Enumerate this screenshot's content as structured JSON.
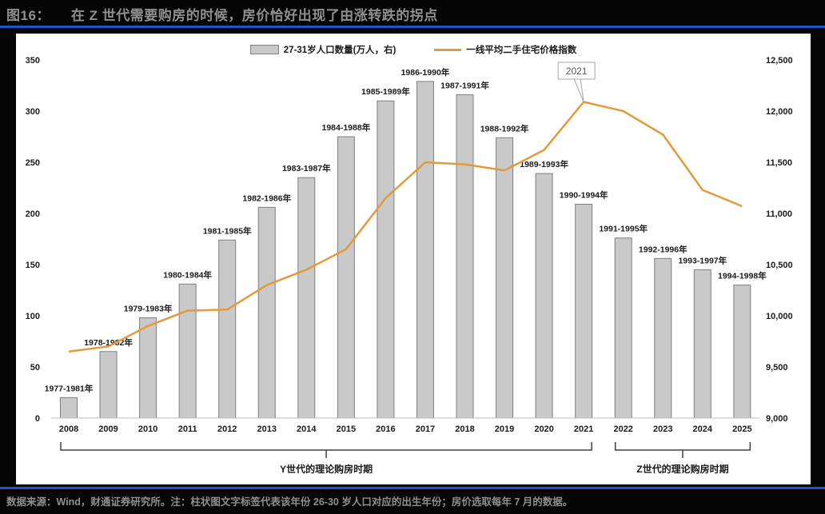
{
  "header": {
    "tag": "图16：",
    "title": "在 Z 世代需要购房的时候，房价恰好出现了由涨转跌的拐点"
  },
  "legend": {
    "bar_label": "27-31岁人口数量(万人，右)",
    "line_label": "一线平均二手住宅价格指数"
  },
  "annotation": {
    "label": "2021",
    "year": "2021"
  },
  "brackets": [
    {
      "label": "Y世代的理论购房时期",
      "from": "2008",
      "to": "2021"
    },
    {
      "label": "Z世代的理论购房时期",
      "from": "2022",
      "to": "2025"
    }
  ],
  "footer": {
    "text": "数据来源：Wind，财通证券研究所。注：柱状图文字标签代表该年份 26-30 岁人口对应的出生年份；房价选取每年 7 月的数据。"
  },
  "colors": {
    "page_bg": "#050505",
    "accent_blue": "#1c57c7",
    "bar_fill": "#c9c9c9",
    "bar_border": "#7f7f7f",
    "line_orange": "#e29a3a",
    "muted_text": "#8f8f8f",
    "axis_text": "#1a1a1a"
  },
  "chart_data": {
    "type": "bar",
    "subtype": "bar-line-combo",
    "categories": [
      "2008",
      "2009",
      "2010",
      "2011",
      "2012",
      "2013",
      "2014",
      "2015",
      "2016",
      "2017",
      "2018",
      "2019",
      "2020",
      "2021",
      "2022",
      "2023",
      "2024",
      "2025"
    ],
    "series": [
      {
        "name": "27-31岁人口数量(万人，右)",
        "type": "bar",
        "values": [
          20,
          65,
          98,
          131,
          174,
          206,
          235,
          275,
          310,
          329,
          316,
          274,
          239,
          209,
          176,
          156,
          145,
          130
        ],
        "point_labels": [
          "1977-1981年",
          "1978-1982年",
          "1979-1983年",
          "1980-1984年",
          "1981-1985年",
          "1982-1986年",
          "1983-1987年",
          "1984-1988年",
          "1985-1989年",
          "1986-1990年",
          "1987-1991年",
          "1988-1992年",
          "1989-1993年",
          "1990-1994年",
          "1991-1995年",
          "1992-1996年",
          "1993-1997年",
          "1994-1998年"
        ]
      },
      {
        "name": "一线平均二手住宅价格指数",
        "type": "line",
        "values": [
          9650,
          9700,
          9900,
          10050,
          10060,
          10300,
          10450,
          10650,
          11150,
          11500,
          11480,
          11420,
          11620,
          12090,
          12000,
          11770,
          11230,
          11070
        ]
      }
    ],
    "left_axis": {
      "min": 0,
      "max": 350,
      "tick_step": 50,
      "ticks": [
        "0",
        "50",
        "100",
        "150",
        "200",
        "250",
        "300",
        "350"
      ]
    },
    "right_axis": {
      "min": 9000,
      "max": 12500,
      "tick_step": 500,
      "ticks": [
        "9,000",
        "9,500",
        "10,000",
        "10,500",
        "11,000",
        "11,500",
        "12,000",
        "12,500"
      ]
    },
    "grid": false,
    "legend_position": "top",
    "annotation": {
      "label": "2021",
      "x_category": "2021",
      "y_value": 12090
    }
  }
}
